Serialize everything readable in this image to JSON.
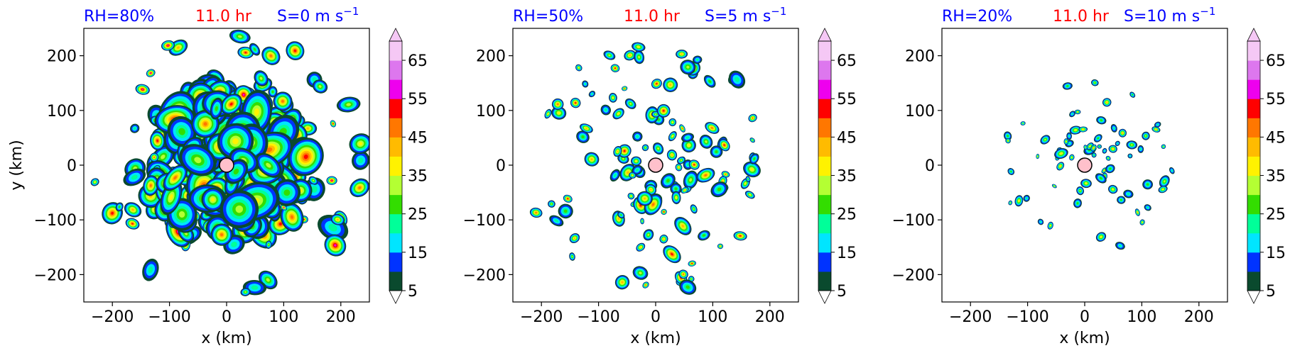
{
  "colors": {
    "title_blue": "#0000ff",
    "title_red": "#ff0000",
    "center_marker_fill": "#ffc0cb"
  },
  "colorbar": {
    "ticks": [
      "5",
      "15",
      "25",
      "35",
      "45",
      "55",
      "65"
    ],
    "levels": [
      5,
      10,
      15,
      20,
      25,
      30,
      35,
      40,
      45,
      50,
      55,
      60,
      65,
      70
    ],
    "colors": [
      "#0a4a2e",
      "#0033ff",
      "#00e5ff",
      "#00ff99",
      "#33dd00",
      "#b4ff33",
      "#fff200",
      "#ffbb00",
      "#ff7700",
      "#ff0000",
      "#ee00ee",
      "#dd77ee",
      "#f5c8f5"
    ],
    "extend": "both"
  },
  "chart_data": [
    {
      "type": "heatmap",
      "title_parts": {
        "rh": "RH=80%",
        "time": "11.0 hr",
        "shear": "S=0 m s",
        "shear_exp": "−1"
      },
      "xlabel": "x (km)",
      "ylabel": "y (km)",
      "xlim": [
        -250,
        250
      ],
      "ylim": [
        -250,
        250
      ],
      "xticks": [
        "−200",
        "−100",
        "0",
        "100",
        "200"
      ],
      "yticks": [
        "200",
        "100",
        "0",
        "−100",
        "−200"
      ],
      "center_marker": [
        0,
        0
      ],
      "field": "reflectivity (dBZ), widespread spiral rainbands, max ~55"
    },
    {
      "type": "heatmap",
      "title_parts": {
        "rh": "RH=50%",
        "time": "11.0 hr",
        "shear": "S=5 m s",
        "shear_exp": "−1"
      },
      "xlabel": "x (km)",
      "ylabel": "",
      "xlim": [
        -250,
        250
      ],
      "ylim": [
        -250,
        250
      ],
      "xticks": [
        "−200",
        "−100",
        "0",
        "100",
        "200"
      ],
      "yticks": [
        "200",
        "100",
        "0",
        "−100",
        "−200"
      ],
      "center_marker": [
        0,
        0
      ],
      "field": "reflectivity (dBZ), scattered cells in ring, max ~50"
    },
    {
      "type": "heatmap",
      "title_parts": {
        "rh": "RH=20%",
        "time": "11.0 hr",
        "shear": "S=10 m s",
        "shear_exp": "−1"
      },
      "xlabel": "x (km)",
      "ylabel": "",
      "xlim": [
        -250,
        250
      ],
      "ylim": [
        -250,
        250
      ],
      "xticks": [
        "−200",
        "−100",
        "0",
        "100",
        "200"
      ],
      "yticks": [
        "200",
        "100",
        "0",
        "−100",
        "−200"
      ],
      "center_marker": [
        0,
        0
      ],
      "field": "reflectivity (dBZ), sparse small cells, max ~40"
    }
  ]
}
